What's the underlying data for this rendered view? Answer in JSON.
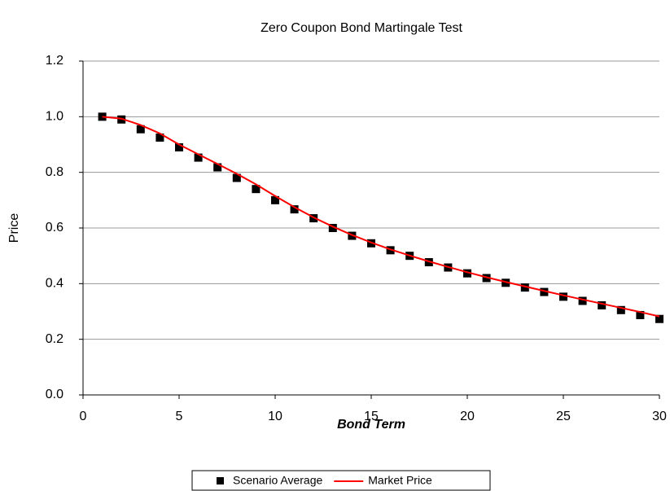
{
  "chart_data": {
    "type": "scatter",
    "title": "Zero Coupon Bond Martingale Test",
    "xlabel": "Bond Term",
    "ylabel": "Price",
    "x": [
      1,
      2,
      3,
      4,
      5,
      6,
      7,
      8,
      9,
      10,
      11,
      12,
      13,
      14,
      15,
      16,
      17,
      18,
      19,
      20,
      21,
      22,
      23,
      24,
      25,
      26,
      27,
      28,
      29,
      30
    ],
    "series": [
      {
        "name": "Scenario Average",
        "color": "#000000",
        "style": "marker",
        "values": [
          1.0,
          0.99,
          0.955,
          0.925,
          0.89,
          0.853,
          0.818,
          0.78,
          0.74,
          0.7,
          0.667,
          0.635,
          0.6,
          0.572,
          0.545,
          0.52,
          0.5,
          0.477,
          0.458,
          0.437,
          0.42,
          0.403,
          0.386,
          0.37,
          0.353,
          0.338,
          0.322,
          0.305,
          0.287,
          0.273
        ]
      },
      {
        "name": "Market Price",
        "color": "#ff0000",
        "style": "line",
        "values": [
          1.0,
          0.993,
          0.97,
          0.94,
          0.9,
          0.865,
          0.83,
          0.795,
          0.757,
          0.715,
          0.675,
          0.638,
          0.605,
          0.575,
          0.548,
          0.523,
          0.501,
          0.48,
          0.46,
          0.441,
          0.423,
          0.406,
          0.39,
          0.374,
          0.358,
          0.343,
          0.328,
          0.313,
          0.298,
          0.282
        ]
      }
    ],
    "xlim": [
      0,
      30
    ],
    "xticks": [
      0,
      5,
      10,
      15,
      20,
      25,
      30
    ],
    "ylim": [
      0,
      1.2
    ],
    "yticks": [
      {
        "value": 0,
        "label": "0.0"
      },
      0.2,
      0.4,
      0.6,
      0.8,
      {
        "value": 1,
        "label": "1.0"
      },
      1.2
    ],
    "grid": true,
    "legend": "bottom"
  }
}
